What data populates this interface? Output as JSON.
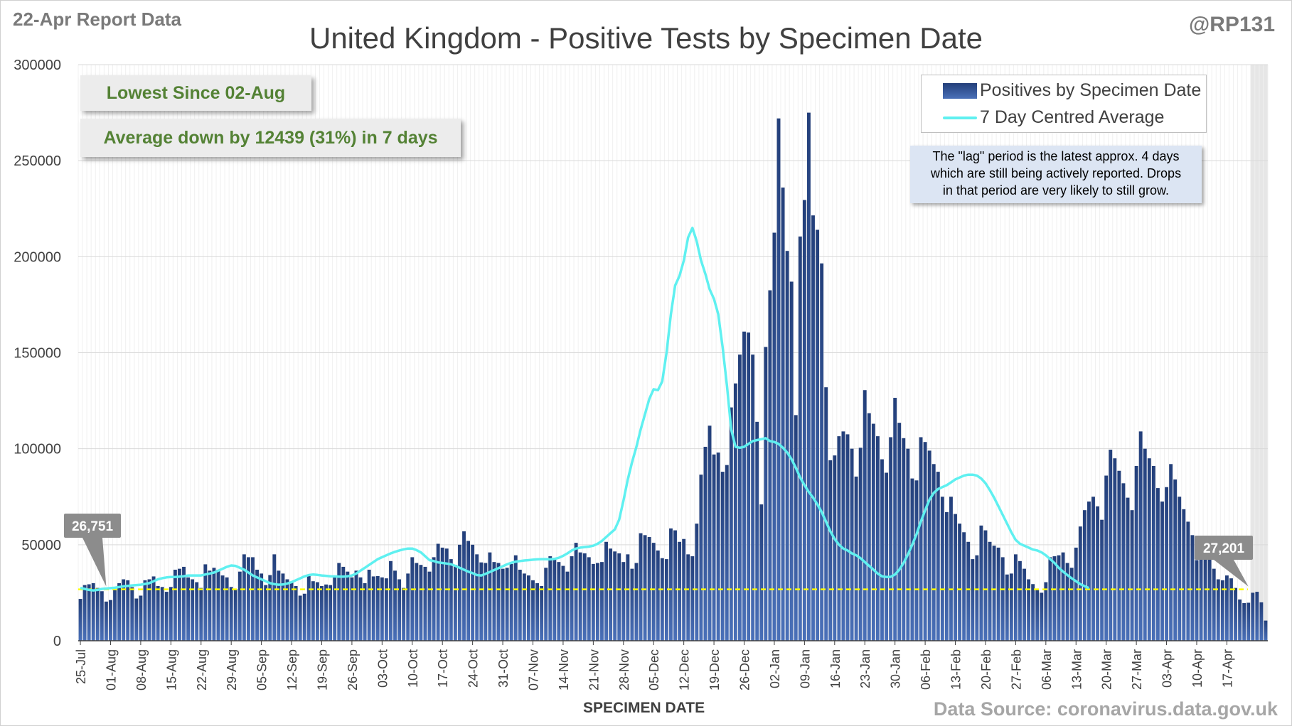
{
  "report_label": "22-Apr Report Data",
  "handle": "@RP131",
  "callouts": {
    "lowest": "Lowest Since 02-Aug",
    "average": "Average down by 12439 (31%) in 7 days"
  },
  "legend": {
    "bar_label": "Positives by Specimen Date",
    "line_label": "7 Day Centred Average"
  },
  "lag_note": [
    "The \"lag\" period is the latest approx. 4 days",
    "which are still being actively reported. Drops",
    "in that period are very likely to still grow."
  ],
  "source": "Data Source: coronavirus.data.gov.uk",
  "colors": {
    "bar_dark": "#233f7a",
    "bar_light": "#4a70b8",
    "average_line": "#5ff0f0",
    "reference_line": "#ffff00",
    "callout_text": "#548235",
    "lag_shade": "#e6e6e6"
  },
  "chart_data": {
    "type": "bar",
    "title": "United Kingdom - Positive Tests by Specimen Date",
    "xlabel": "SPECIMEN DATE",
    "ylabel": "",
    "ylim": [
      0,
      300000
    ],
    "yticks": [
      0,
      50000,
      100000,
      150000,
      200000,
      250000,
      300000
    ],
    "grid": true,
    "legend_position": "top-right",
    "start_date": "25-Jul",
    "x_tick_labels": [
      "25-Jul",
      "01-Aug",
      "08-Aug",
      "15-Aug",
      "22-Aug",
      "29-Aug",
      "05-Sep",
      "12-Sep",
      "19-Sep",
      "26-Sep",
      "03-Oct",
      "10-Oct",
      "17-Oct",
      "24-Oct",
      "31-Oct",
      "07-Nov",
      "14-Nov",
      "21-Nov",
      "28-Nov",
      "05-Dec",
      "12-Dec",
      "19-Dec",
      "26-Dec",
      "02-Jan",
      "09-Jan",
      "16-Jan",
      "23-Jan",
      "30-Jan",
      "06-Feb",
      "13-Feb",
      "20-Feb",
      "27-Feb",
      "06-Mar",
      "13-Mar",
      "20-Mar",
      "27-Mar",
      "03-Apr",
      "10-Apr",
      "17-Apr"
    ],
    "lag_days": 4,
    "series": [
      {
        "name": "Positives by Specimen Date",
        "type": "bar",
        "values": [
          21800,
          29000,
          29400,
          30000,
          27500,
          25800,
          20400,
          21200,
          28000,
          30000,
          32000,
          31500,
          27900,
          22000,
          23500,
          31500,
          32000,
          33500,
          28500,
          28000,
          25500,
          28000,
          37000,
          37500,
          38500,
          33000,
          32000,
          30500,
          27500,
          39800,
          36500,
          38000,
          37000,
          34000,
          33000,
          28000,
          26900,
          36000,
          45000,
          43500,
          43500,
          37000,
          35000,
          29000,
          34200,
          45000,
          36500,
          35000,
          32000,
          30500,
          28500,
          23500,
          24500,
          34500,
          31000,
          30500,
          28500,
          29300,
          29000,
          34000,
          40500,
          38500,
          36000,
          33000,
          36500,
          33000,
          30000,
          37000,
          33500,
          33700,
          33000,
          32500,
          41500,
          36500,
          32000,
          27500,
          35000,
          43500,
          40500,
          39500,
          38500,
          36000,
          43500,
          50500,
          48500,
          48000,
          42500,
          39500,
          50000,
          57000,
          52000,
          50000,
          45000,
          40800,
          40500,
          46000,
          41000,
          40500,
          37500,
          38000,
          40000,
          44500,
          37000,
          35000,
          34000,
          31500,
          30000,
          28500,
          38000,
          44000,
          43000,
          41000,
          39000,
          36000,
          44000,
          51000,
          46000,
          45500,
          43500,
          40000,
          40500,
          41000,
          51500,
          48000,
          46500,
          45500,
          41000,
          45000,
          37500,
          40500,
          56000,
          55000,
          54000,
          51000,
          47000,
          43000,
          42500,
          58500,
          57500,
          51500,
          53000,
          45000,
          44000,
          61000,
          86500,
          101000,
          112000,
          97000,
          98000,
          88000,
          91500,
          121500,
          134000,
          149000,
          161000,
          160500,
          149000,
          114000,
          71000,
          153000,
          182500,
          212500,
          272000,
          236000,
          203000,
          187000,
          117500,
          210500,
          229500,
          275000,
          221500,
          214000,
          196500,
          132000,
          94000,
          96500,
          106500,
          109000,
          107500,
          100000,
          85500,
          100500,
          130500,
          118500,
          113000,
          106500,
          94500,
          87500,
          106000,
          126500,
          113500,
          105500,
          100000,
          84500,
          83500,
          106000,
          103500,
          99000,
          92000,
          88000,
          75000,
          67000,
          75000,
          66000,
          61000,
          56500,
          51500,
          42500,
          44500,
          60000,
          57500,
          51500,
          49500,
          48500,
          43500,
          34500,
          35000,
          45000,
          41500,
          37500,
          32000,
          29500,
          26300,
          25000,
          30500,
          43500,
          44000,
          44500,
          46000,
          40500,
          38000,
          48500,
          59500,
          68000,
          72500,
          75000,
          70000,
          63000,
          86000,
          99500,
          95000,
          88500,
          82000,
          74500,
          68000,
          91000,
          109000,
          100000,
          95000,
          91000,
          79500,
          72500,
          80000,
          92000,
          84000,
          75000,
          68500,
          62000,
          55000,
          42000,
          51500,
          45500,
          43500,
          37500,
          32000,
          31500,
          34000,
          32500,
          27500,
          21500,
          19600,
          19800,
          25000,
          25500,
          20000,
          10500
        ]
      },
      {
        "name": "7 Day Centred Average",
        "type": "line",
        "values": [
          27500,
          27000,
          26500,
          26200,
          26500,
          27000,
          27200,
          27400,
          27600,
          28000,
          28300,
          28600,
          28800,
          29000,
          29200,
          29600,
          30000,
          31000,
          32000,
          32600,
          33000,
          33200,
          33200,
          33400,
          33600,
          34000,
          34000,
          34000,
          34000,
          34500,
          35000,
          35500,
          36500,
          37500,
          38500,
          39200,
          39000,
          38000,
          37000,
          35500,
          34000,
          33000,
          32000,
          31000,
          30000,
          29500,
          29200,
          29300,
          29800,
          30500,
          31500,
          32500,
          33500,
          34200,
          34500,
          34300,
          34000,
          33800,
          33600,
          33500,
          33400,
          33400,
          33600,
          34000,
          35000,
          36500,
          38000,
          39500,
          41000,
          42500,
          43500,
          44500,
          45500,
          46300,
          47000,
          47600,
          48000,
          48000,
          47200,
          46000,
          44000,
          42000,
          41500,
          40800,
          40500,
          40200,
          39800,
          39000,
          38000,
          37000,
          36000,
          35200,
          34200,
          34000,
          34800,
          35800,
          36800,
          37800,
          38800,
          39800,
          40600,
          41200,
          41500,
          41800,
          42000,
          42200,
          42400,
          42500,
          42500,
          42400,
          42600,
          43200,
          44200,
          45500,
          47000,
          48000,
          48500,
          48800,
          49000,
          49500,
          50500,
          52000,
          54000,
          56000,
          58000,
          63000,
          73000,
          84000,
          93000,
          101000,
          110000,
          118000,
          126000,
          131000,
          130500,
          135000,
          150000,
          170000,
          185000,
          190000,
          198000,
          210000,
          215000,
          208000,
          198000,
          191000,
          183000,
          178000,
          170000,
          153000,
          133000,
          110000,
          101000,
          100500,
          101000,
          102500,
          104000,
          104500,
          105000,
          105500,
          104000,
          103500,
          102500,
          100500,
          98000,
          94500,
          90000,
          85000,
          81000,
          77500,
          74500,
          71000,
          67000,
          62000,
          57000,
          53000,
          50000,
          48000,
          47000,
          45500,
          44500,
          43000,
          41000,
          39000,
          37000,
          35000,
          33500,
          33200,
          33300,
          34500,
          37000,
          40500,
          45000,
          50000,
          55500,
          62000,
          68000,
          73500,
          77000,
          79000,
          80000,
          81000,
          82500,
          84000,
          85000,
          86000,
          86500,
          86500,
          86000,
          84500,
          82000,
          78500,
          74500,
          70000,
          65500,
          61000,
          56500,
          52500,
          50500,
          49500,
          48500,
          47500,
          47000,
          46000,
          44500,
          42500,
          40500,
          38000,
          36000,
          34200,
          32500,
          31000,
          29500,
          28400,
          27500
        ]
      }
    ],
    "reference_line": {
      "value": 26751,
      "labels": [
        "26,751",
        "27,201"
      ]
    }
  }
}
